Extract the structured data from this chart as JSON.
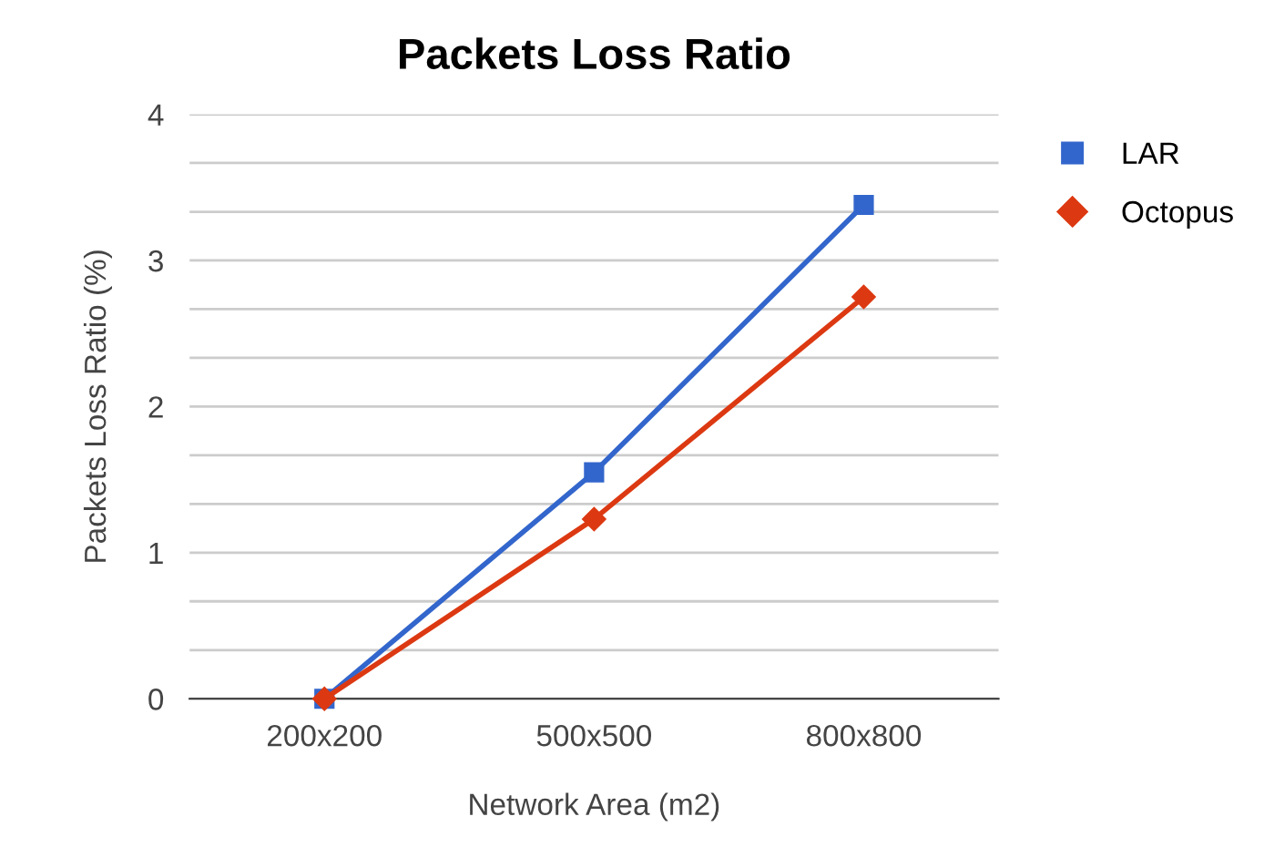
{
  "chart_data": {
    "type": "line",
    "title": "Packets Loss Ratio",
    "xlabel": "Network Area (m2)",
    "ylabel": "Packets Loss Ratio (%)",
    "categories": [
      "200x200",
      "500x500",
      "800x800"
    ],
    "series": [
      {
        "name": "LAR",
        "color": "#3366cc",
        "marker": "square",
        "values": [
          0,
          1.55,
          3.38
        ]
      },
      {
        "name": "Octopus",
        "color": "#dc3912",
        "marker": "diamond",
        "values": [
          0,
          1.23,
          2.75
        ]
      }
    ],
    "ylim": [
      0,
      4
    ],
    "yticks": [
      0,
      {
        "value": 0.333,
        "label": null
      },
      {
        "value": 0.667,
        "label": null
      },
      1,
      {
        "value": 1.333,
        "label": null
      },
      {
        "value": 1.667,
        "label": null
      },
      2,
      {
        "value": 2.333,
        "label": null
      },
      {
        "value": 2.667,
        "label": null
      },
      3,
      {
        "value": 3.333,
        "label": null
      },
      {
        "value": 3.667,
        "label": null
      },
      4
    ],
    "grid": "y",
    "legend": "top right",
    "line_style": "solid"
  }
}
